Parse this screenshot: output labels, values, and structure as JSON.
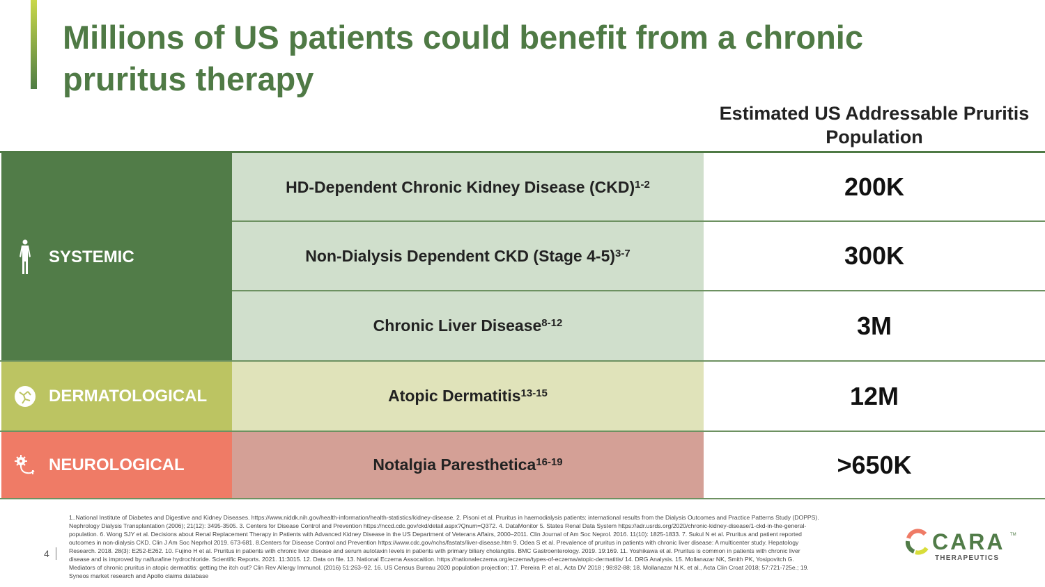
{
  "title": "Millions of US patients could benefit from a chronic pruritus therapy",
  "column_header": "Estimated US Addressable Pruritis Population",
  "categories": [
    {
      "label": "SYSTEMIC",
      "icon": "human-figure-icon",
      "color": "#517c48",
      "light": "#d0dfcc"
    },
    {
      "label": "DERMATOLOGICAL",
      "icon": "skin-icon",
      "color": "#bcc462",
      "light": "#e0e3ba"
    },
    {
      "label": "NEUROLOGICAL",
      "icon": "neuron-icon",
      "color": "#ef7b66",
      "light": "#d4a096"
    }
  ],
  "rows": [
    {
      "condition": "HD-Dependent Chronic Kidney Disease (CKD)",
      "ref": "1-2",
      "value": "200K"
    },
    {
      "condition": "Non-Dialysis Dependent CKD (Stage 4-5)",
      "ref": "3-7",
      "value": "300K"
    },
    {
      "condition": "Chronic Liver Disease",
      "ref": "8-12",
      "value": "3M"
    },
    {
      "condition": "Atopic Dermatitis",
      "ref": "13-15",
      "value": "12M"
    },
    {
      "condition": "Notalgia Paresthetica",
      "ref": "16-19",
      "value": ">650K"
    }
  ],
  "footnotes": [
    "1..National Institute of Diabetes and Digestive and Kidney Diseases. https://www.niddk.nih.gov/health-information/health-statistics/kidney-disease. 2. Pisoni et al. Pruritus in haemodialysis patients: international results from the Dialysis Outcomes and Practice Patterns Study (DOPPS).",
    "Nephrology Dialysis Transplantation (2006); 21(12): 3495-3505. 3. Centers for Disease Control and Prevention https://nccd.cdc.gov/ckd/detail.aspx?Qnum=Q372. 4. DataMonitor 5. States Renal Data System https://adr.usrds.org/2020/chronic-kidney-disease/1-ckd-in-the-general-",
    "population. 6. Wong SJY et al. Decisions about Renal Replacement Therapy in Patients with Advanced Kidney Disease in the US Department of Veterans Affairs, 2000–2011. Clin Journal of Am Soc Neprol. 2016. 11(10): 1825-1833.      7. Sukul N et al. Pruritus and patient reported",
    "outcomes in non-dialysis CKD. Clin J Am Soc Neprhol 2019. 673-681. 8.Centers for Disease Control and Prevention https://www.cdc.gov/nchs/fastats/liver-disease.htm 9. Odea S et al. Prevalence of pruritus in patients with chronic liver disease: A multicenter study. Hepatology",
    "Research. 2018. 28(3): E252-E262. 10. Fujino H et al. Pruritus in patients with chronic liver disease and serum autotaxin levels in patients with primary biliary cholangitis. BMC Gastroenterology. 2019. 19:169. 11. Yoshikawa et al. Pruritus is common in patients with chronic liver",
    "disease and is improved by nalfurafine hydrochloride. Scientific Reports. 2021. 11:3015. 12. Data on file. 13. National Eczema Assocaition. https://nationaleczema.org/eczema/types-of-eczema/atopic-dermatitis/ 14. DRG Analysis. 15. Mollanazar NK, Smith PK, Yosipovitch G.",
    "Mediators of chronic pruritus in atopic dermatitis: getting the itch out? Clin Rev Allergy Immunol. (2016) 51:263–92. 16. US Census Bureau 2020 population projection; 17. Pereira P. et al., Acta DV 2018 ; 98:82-88; 18. Mollanazar N.K. et al.,  Acta Clin Croat 2018; 57:721-725e.; 19.",
    "Syneos market research and Apollo claims database"
  ],
  "page_number": "4",
  "logo": {
    "name": "CARA",
    "tm": "™",
    "sub": "THERAPEUTICS"
  }
}
